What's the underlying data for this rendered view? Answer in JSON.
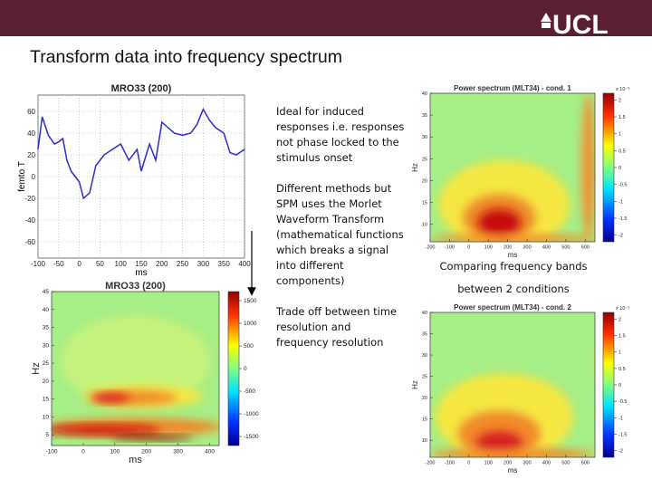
{
  "header": {
    "logo": "UCL"
  },
  "title": "Transform data into frequency spectrum",
  "bullets": [
    [
      "Ideal for induced",
      "responses i.e. responses",
      "not phase locked to the",
      "stimulus onset"
    ],
    [
      "Different methods but",
      "SPM uses the Morlet",
      "Waveform Transform",
      "(mathematical functions",
      "which breaks a signal",
      "into different",
      "components)"
    ],
    [
      "Trade off between time",
      "resolution and",
      "frequency resolution"
    ]
  ],
  "caption": [
    "Comparing frequency bands",
    "between 2 conditions"
  ],
  "line_chart": {
    "type": "line",
    "title": "MRO33 (200)",
    "xlabel": "ms",
    "ylabel": "femto T",
    "x": [
      -100,
      -90,
      -75,
      -60,
      -50,
      -40,
      -30,
      -20,
      -10,
      0,
      10,
      25,
      40,
      60,
      80,
      100,
      120,
      140,
      150,
      170,
      185,
      200,
      215,
      230,
      250,
      270,
      285,
      300,
      315,
      330,
      350,
      365,
      380,
      400
    ],
    "values": [
      25,
      55,
      38,
      30,
      32,
      35,
      15,
      5,
      0,
      -5,
      -20,
      -15,
      10,
      20,
      25,
      30,
      15,
      25,
      5,
      30,
      15,
      50,
      45,
      40,
      38,
      40,
      48,
      62,
      52,
      45,
      40,
      22,
      20,
      25
    ],
    "color": "#2b2bd0",
    "xlim": [
      -100,
      400
    ],
    "ylim": [
      -75,
      75
    ],
    "xticks": [
      -100,
      -50,
      0,
      50,
      100,
      150,
      200,
      250,
      300,
      350,
      400
    ],
    "yticks": [
      60,
      40,
      20,
      0,
      -20,
      -40,
      -60
    ],
    "grid": true
  },
  "heatmaps": [
    {
      "title": "MRO33 (200)",
      "xlabel": "ms",
      "ylabel": "Hz",
      "xlim": [
        -100,
        430
      ],
      "ylim": [
        2,
        45
      ],
      "xticks": [
        -100,
        0,
        100,
        200,
        300,
        400
      ],
      "yticks": [
        5,
        10,
        15,
        20,
        25,
        30,
        35,
        40,
        45
      ],
      "clim": [
        -1700,
        1700
      ],
      "cticks": [
        1500,
        1000,
        500,
        0,
        -500,
        -1000,
        -1500
      ]
    },
    {
      "title": "Power spectrum (MLT34) - cond. 1",
      "xlabel": "ms",
      "ylabel": "Hz",
      "cscale": "x 10⁻³",
      "xlim": [
        -200,
        650
      ],
      "ylim": [
        6,
        40
      ],
      "xticks": [
        -200,
        -100,
        0,
        100,
        200,
        300,
        400,
        500,
        600
      ],
      "yticks": [
        10,
        15,
        20,
        25,
        30,
        35,
        40
      ],
      "clim": [
        -2.2,
        2.2
      ],
      "cticks": [
        2,
        1.5,
        1,
        0.5,
        0,
        -0.5,
        -1,
        -1.5,
        -2
      ]
    },
    {
      "title": "Power spectrum (MLT34) - cond. 2",
      "xlabel": "ms",
      "ylabel": "Hz",
      "cscale": "x 10⁻³",
      "xlim": [
        -200,
        650
      ],
      "ylim": [
        6,
        40
      ],
      "xticks": [
        -200,
        -100,
        0,
        100,
        200,
        300,
        400,
        500,
        600
      ],
      "yticks": [
        10,
        15,
        20,
        25,
        30,
        35,
        40
      ],
      "clim": [
        -2.2,
        2.2
      ],
      "cticks": [
        2,
        1.5,
        1,
        0.5,
        0,
        -0.5,
        -1,
        -1.5,
        -2
      ]
    }
  ]
}
